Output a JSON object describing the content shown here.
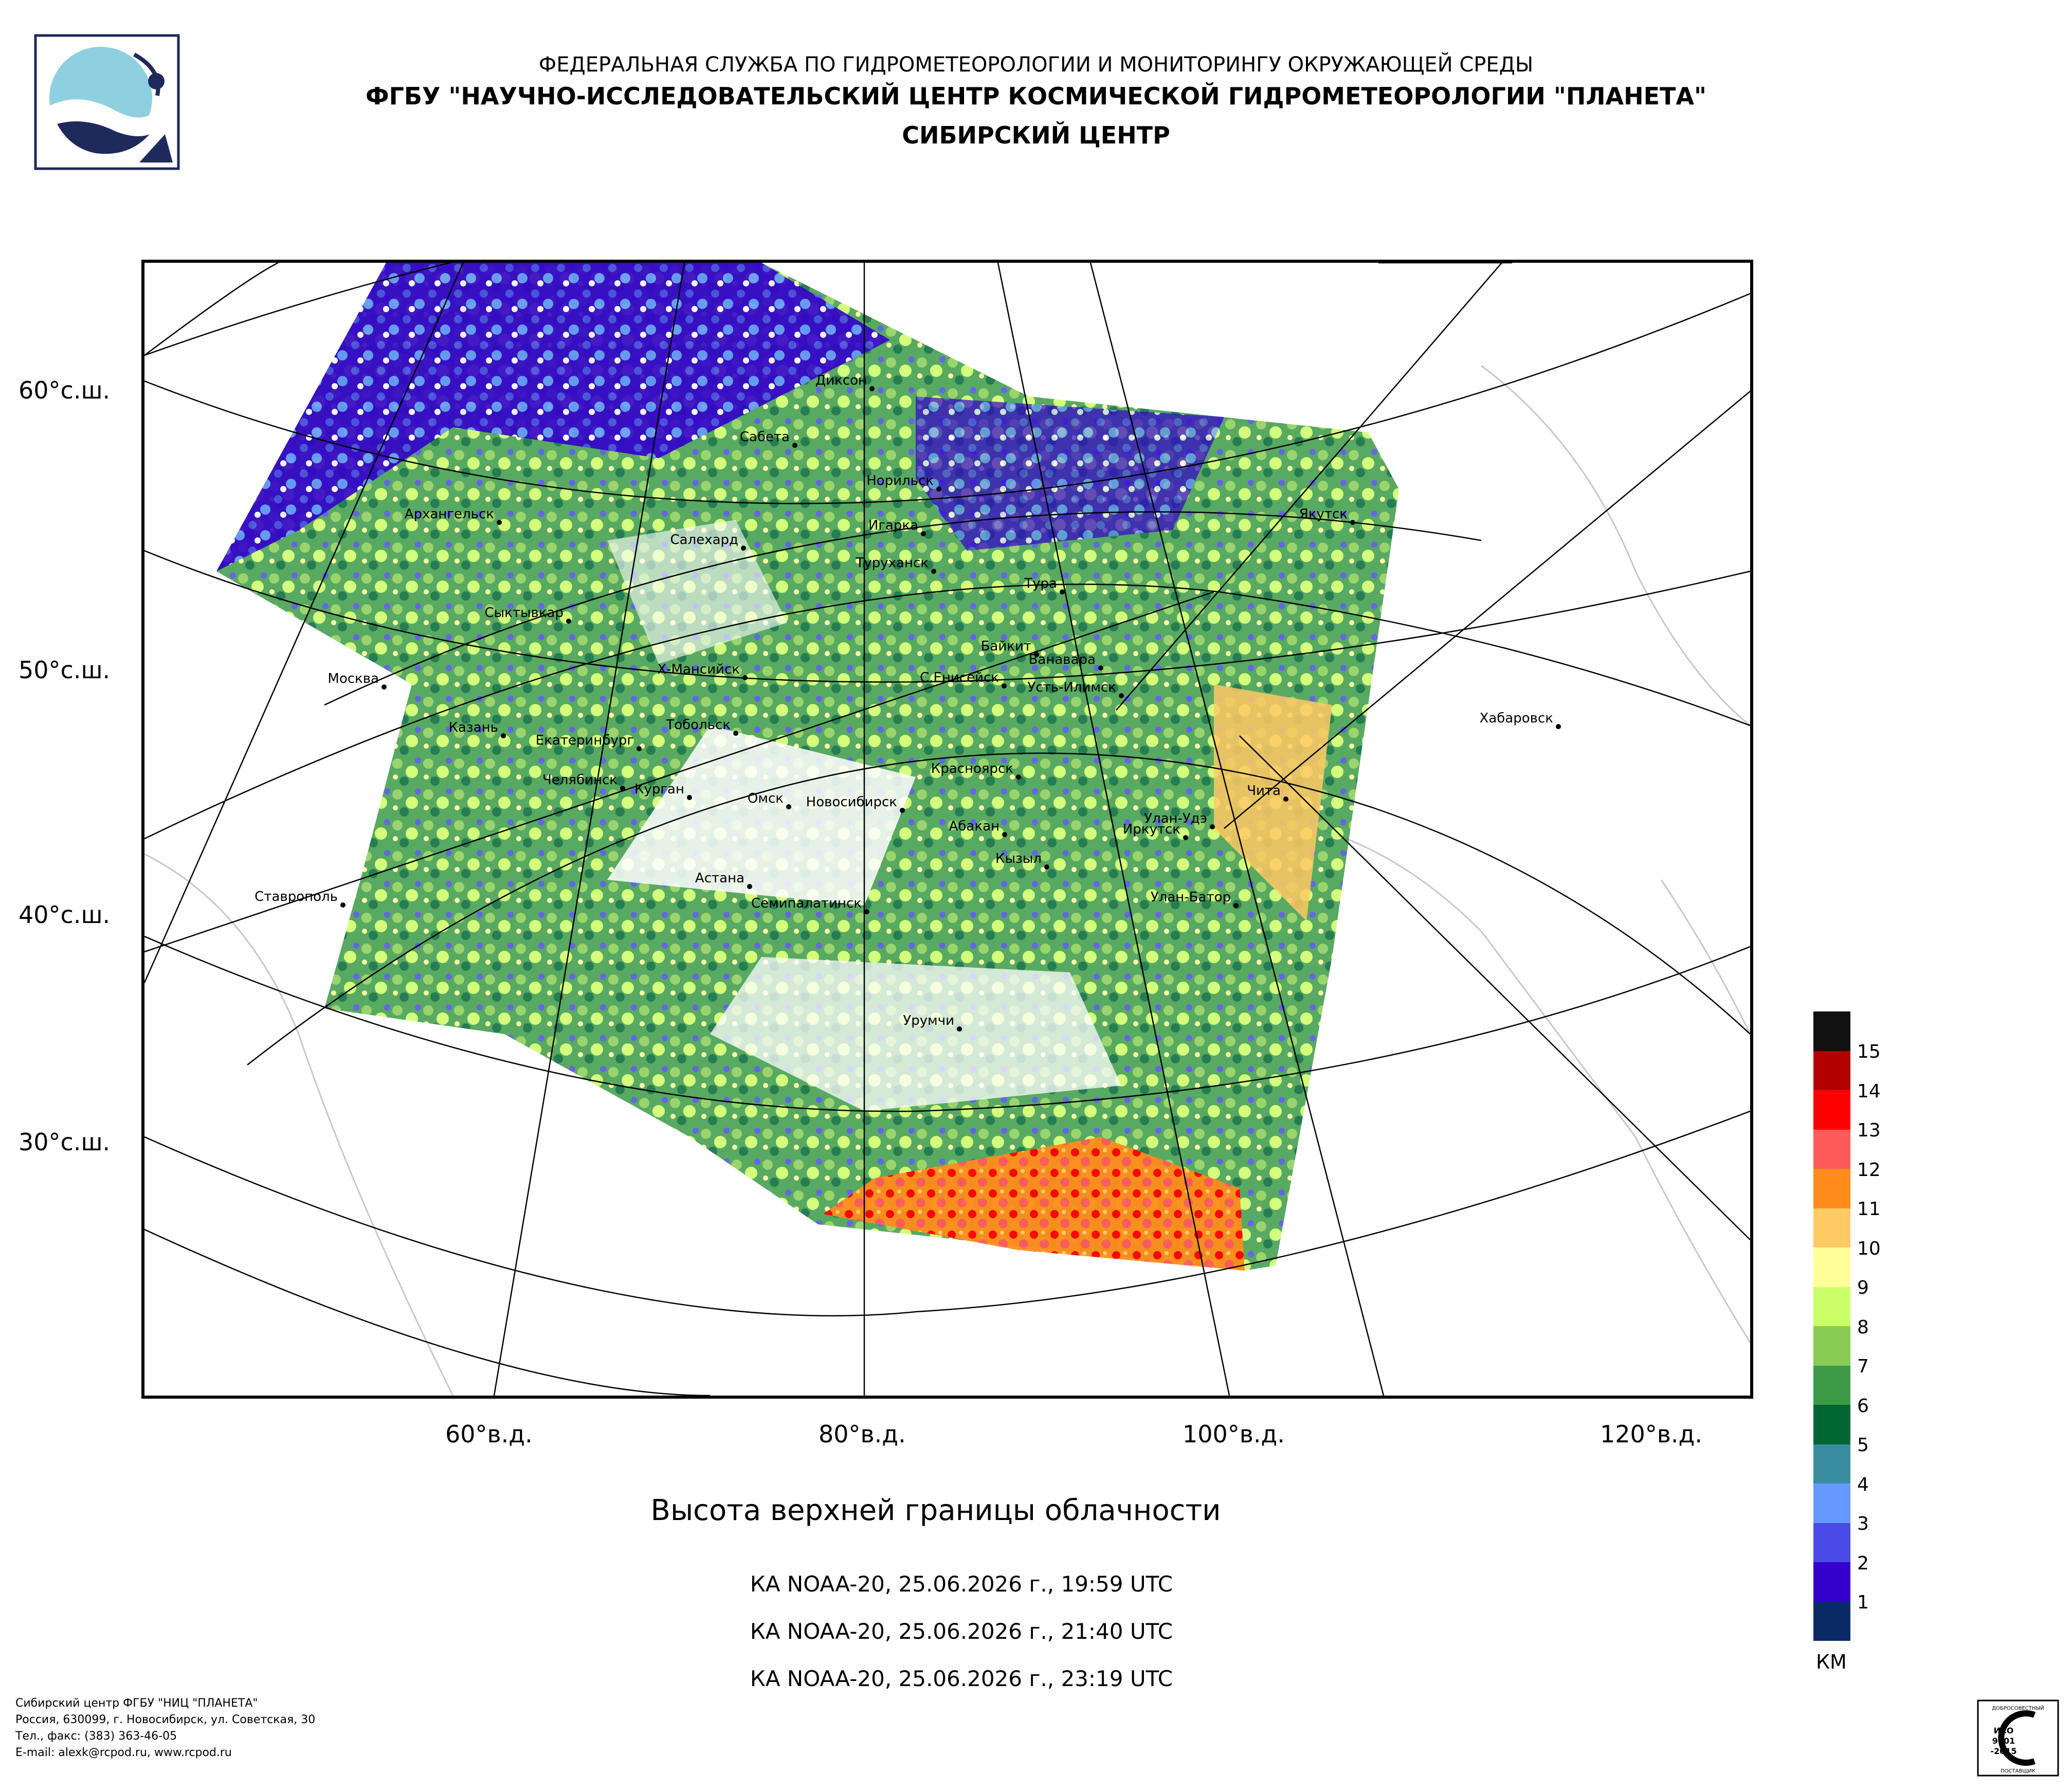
{
  "header": {
    "agency": "ФЕДЕРАЛЬНАЯ СЛУЖБА ПО ГИДРОМЕТЕОРОЛОГИИ И МОНИТОРИНГУ ОКРУЖАЮЩЕЙ СРЕДЫ",
    "organization": "ФГБУ \"НАУЧНО-ИССЛЕДОВАТЕЛЬСКИЙ ЦЕНТР КОСМИЧЕСКОЙ ГИДРОМЕТЕОРОЛОГИИ \"ПЛАНЕТА\"",
    "center": "СИБИРСКИЙ ЦЕНТР"
  },
  "map": {
    "lat_labels": [
      "60°с.ш.",
      "50°с.ш.",
      "40°с.ш.",
      "30°с.ш."
    ],
    "lon_labels": [
      "60°в.д.",
      "80°в.д.",
      "100°в.д.",
      "120°в.д."
    ],
    "cities": [
      {
        "name": "Диксон"
      },
      {
        "name": "Сабета"
      },
      {
        "name": "Норильск"
      },
      {
        "name": "Архангельск"
      },
      {
        "name": "Салехард"
      },
      {
        "name": "Игарка"
      },
      {
        "name": "Туруханск"
      },
      {
        "name": "Тура"
      },
      {
        "name": "Якутск"
      },
      {
        "name": "Сыктывкар"
      },
      {
        "name": "Байкит"
      },
      {
        "name": "Ванавара"
      },
      {
        "name": "Москва"
      },
      {
        "name": "Х-Мансийск"
      },
      {
        "name": "С.Енисейск"
      },
      {
        "name": "Усть-Илимск"
      },
      {
        "name": "Хабаровск"
      },
      {
        "name": "Казань"
      },
      {
        "name": "Тобольск"
      },
      {
        "name": "Екатеринбург"
      },
      {
        "name": "Красноярск"
      },
      {
        "name": "Челябинск"
      },
      {
        "name": "Курган"
      },
      {
        "name": "Чита"
      },
      {
        "name": "Омск"
      },
      {
        "name": "Новосибирск"
      },
      {
        "name": "Абакан"
      },
      {
        "name": "Улан-Удэ"
      },
      {
        "name": "Иркутск"
      },
      {
        "name": "Кызыл"
      },
      {
        "name": "Астана"
      },
      {
        "name": "Ставрополь"
      },
      {
        "name": "Семипалатинск"
      },
      {
        "name": "Улан-Батор"
      },
      {
        "name": "Урумчи"
      }
    ]
  },
  "product": {
    "title": "Высота верхней границы облачности",
    "passes": [
      "КА NOAA-20, 25.06.2026 г., 19:59 UTC",
      "КА NOAA-20, 25.06.2026 г., 21:40 UTC",
      "КА NOAA-20, 25.06.2026 г., 23:19 UTC"
    ]
  },
  "legend": {
    "unit": "КМ",
    "levels": [
      {
        "value": "15",
        "color": "#111111"
      },
      {
        "value": "14",
        "color": "#b30000"
      },
      {
        "value": "13",
        "color": "#ff0000"
      },
      {
        "value": "12",
        "color": "#ff5a5a"
      },
      {
        "value": "11",
        "color": "#ff8c1a"
      },
      {
        "value": "10",
        "color": "#ffc964"
      },
      {
        "value": "9",
        "color": "#ffff99"
      },
      {
        "value": "8",
        "color": "#ccff66"
      },
      {
        "value": "7",
        "color": "#88cc55"
      },
      {
        "value": "6",
        "color": "#3a9a45"
      },
      {
        "value": "5",
        "color": "#006633"
      },
      {
        "value": "4",
        "color": "#3a8da0"
      },
      {
        "value": "3",
        "color": "#6699ff"
      },
      {
        "value": "2",
        "color": "#4a4ae6"
      },
      {
        "value": "1",
        "color": "#3300cc"
      },
      {
        "value": "",
        "color": "#0a2a66"
      }
    ]
  },
  "footer": {
    "line1": "Сибирский центр ФГБУ \"НИЦ \"ПЛАНЕТА\"",
    "line2": "Россия, 630099, г. Новосибирск, ул. Советская, 30",
    "line3": "Тел., факс: (383) 363-46-05",
    "line4": "E-mail: alexk@rcpod.ru, www.rcpod.ru"
  },
  "certificate": {
    "top": "ДОБРОСОВЕСТНЫЙ",
    "standard1": "ИСО",
    "standard2": "9001",
    "standard3": "-2015",
    "bottom": "ПОСТАВЩИК"
  }
}
